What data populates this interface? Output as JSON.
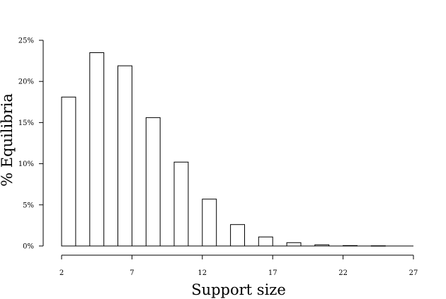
{
  "chart_data": {
    "type": "bar",
    "xlabel": "Support size",
    "ylabel": "% Equilibria",
    "x_ticks": [
      2,
      7,
      12,
      17,
      22,
      27
    ],
    "x_tick_labels": [
      "2",
      "7",
      "12",
      "17",
      "22",
      "27"
    ],
    "xlim": [
      2,
      27
    ],
    "y_ticks": [
      0,
      5,
      10,
      15,
      20,
      25
    ],
    "y_tick_labels": [
      "0%",
      "5%",
      "10%",
      "15%",
      "20%",
      "25%"
    ],
    "ylim": [
      0,
      25
    ],
    "bar_width": 1,
    "bins": [
      {
        "x": 2,
        "value": 18.1
      },
      {
        "x": 4,
        "value": 23.5
      },
      {
        "x": 6,
        "value": 21.9
      },
      {
        "x": 8,
        "value": 15.6
      },
      {
        "x": 10,
        "value": 10.2
      },
      {
        "x": 12,
        "value": 5.7
      },
      {
        "x": 14,
        "value": 2.6
      },
      {
        "x": 16,
        "value": 1.1
      },
      {
        "x": 18,
        "value": 0.4
      },
      {
        "x": 20,
        "value": 0.15
      },
      {
        "x": 22,
        "value": 0.05
      },
      {
        "x": 24,
        "value": 0.03
      }
    ],
    "grid": false,
    "colors": {
      "bar_fill": "#ffffff",
      "bar_stroke": "#000000"
    }
  }
}
